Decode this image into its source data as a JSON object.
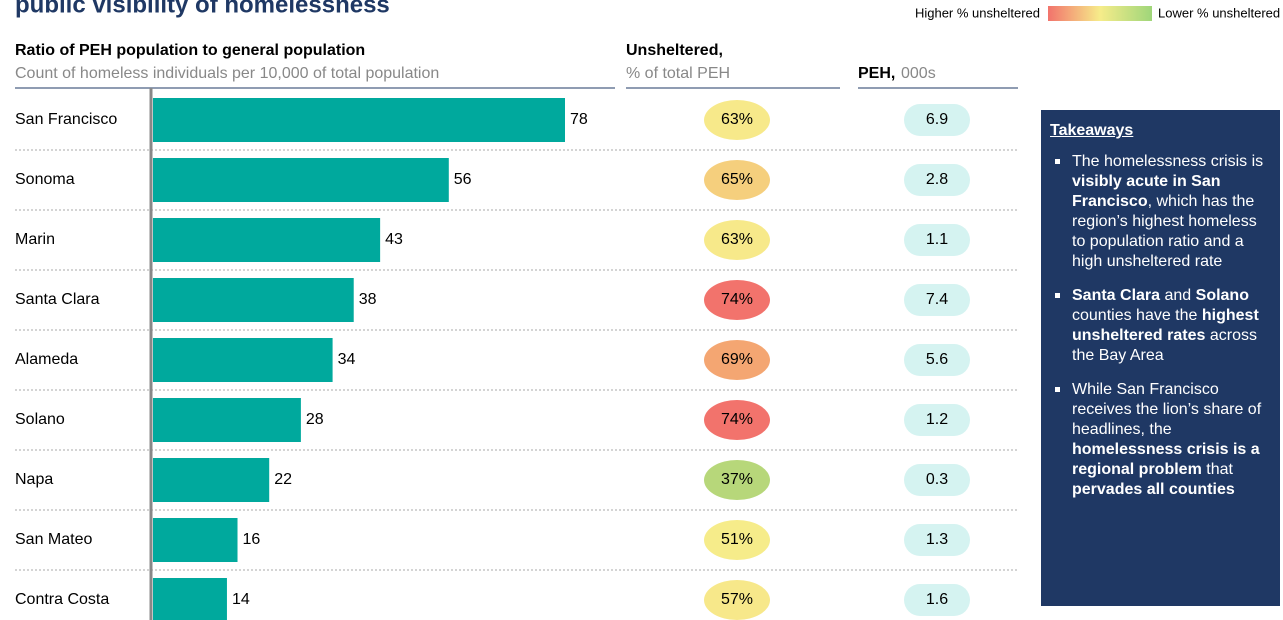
{
  "chart_data": {
    "type": "bar",
    "title": "public visibility of homelessness",
    "legend": {
      "high": "Higher % unsheltered",
      "low": "Lower % unsheltered",
      "gradient": [
        "#f2736c",
        "#f6ec8a",
        "#9fd67a"
      ]
    },
    "bar_header": {
      "title": "Ratio of PEH population to general population",
      "subtitle": "Count of homeless individuals per 10,000 of total population"
    },
    "unsheltered_header": {
      "title": "Unsheltered,",
      "subtitle": "% of total PEH"
    },
    "peh_header": {
      "title": "PEH,",
      "subtitle": "000s"
    },
    "categories": [
      "San Francisco",
      "Sonoma",
      "Marin",
      "Santa Clara",
      "Alameda",
      "Solano",
      "Napa",
      "San Mateo",
      "Contra Costa"
    ],
    "values": [
      78,
      56,
      43,
      38,
      34,
      28,
      22,
      16,
      14
    ],
    "color": "#00a99d",
    "unsheltered": {
      "values": [
        63,
        65,
        63,
        74,
        69,
        74,
        37,
        51,
        57
      ],
      "value_labels": [
        "63%",
        "65%",
        "63%",
        "74%",
        "69%",
        "74%",
        "37%",
        "51%",
        "57%"
      ],
      "colors": [
        "#f7e98a",
        "#f5cf7d",
        "#f7e98a",
        "#f2736c",
        "#f4a672",
        "#f2736c",
        "#b7d77a",
        "#f6ec8a",
        "#f7e88a"
      ]
    },
    "peh": {
      "values": [
        6.9,
        2.8,
        1.1,
        7.4,
        5.6,
        1.2,
        0.3,
        1.3,
        1.6
      ],
      "color": "#d5f3f1"
    }
  },
  "takeaways": {
    "title": "Takeaways",
    "items": [
      [
        {
          "text": "The homelessness crisis is "
        },
        {
          "text": "visibly acute in San Francisco",
          "bold": true
        },
        {
          "text": ", which has the region’s highest homeless to population ratio and a high unsheltered rate"
        }
      ],
      [
        {
          "text": "Santa Clara",
          "bold": true
        },
        {
          "text": " and "
        },
        {
          "text": "Solano",
          "bold": true
        },
        {
          "text": " counties have the "
        },
        {
          "text": "highest unsheltered rates",
          "bold": true
        },
        {
          "text": " across the Bay Area"
        }
      ],
      [
        {
          "text": "While San Francisco receives the lion’s share of headlines, the "
        },
        {
          "text": "homelessness crisis is a regional problem",
          "bold": true
        },
        {
          "text": " that "
        },
        {
          "text": "pervades all counties",
          "bold": true
        }
      ]
    ]
  }
}
